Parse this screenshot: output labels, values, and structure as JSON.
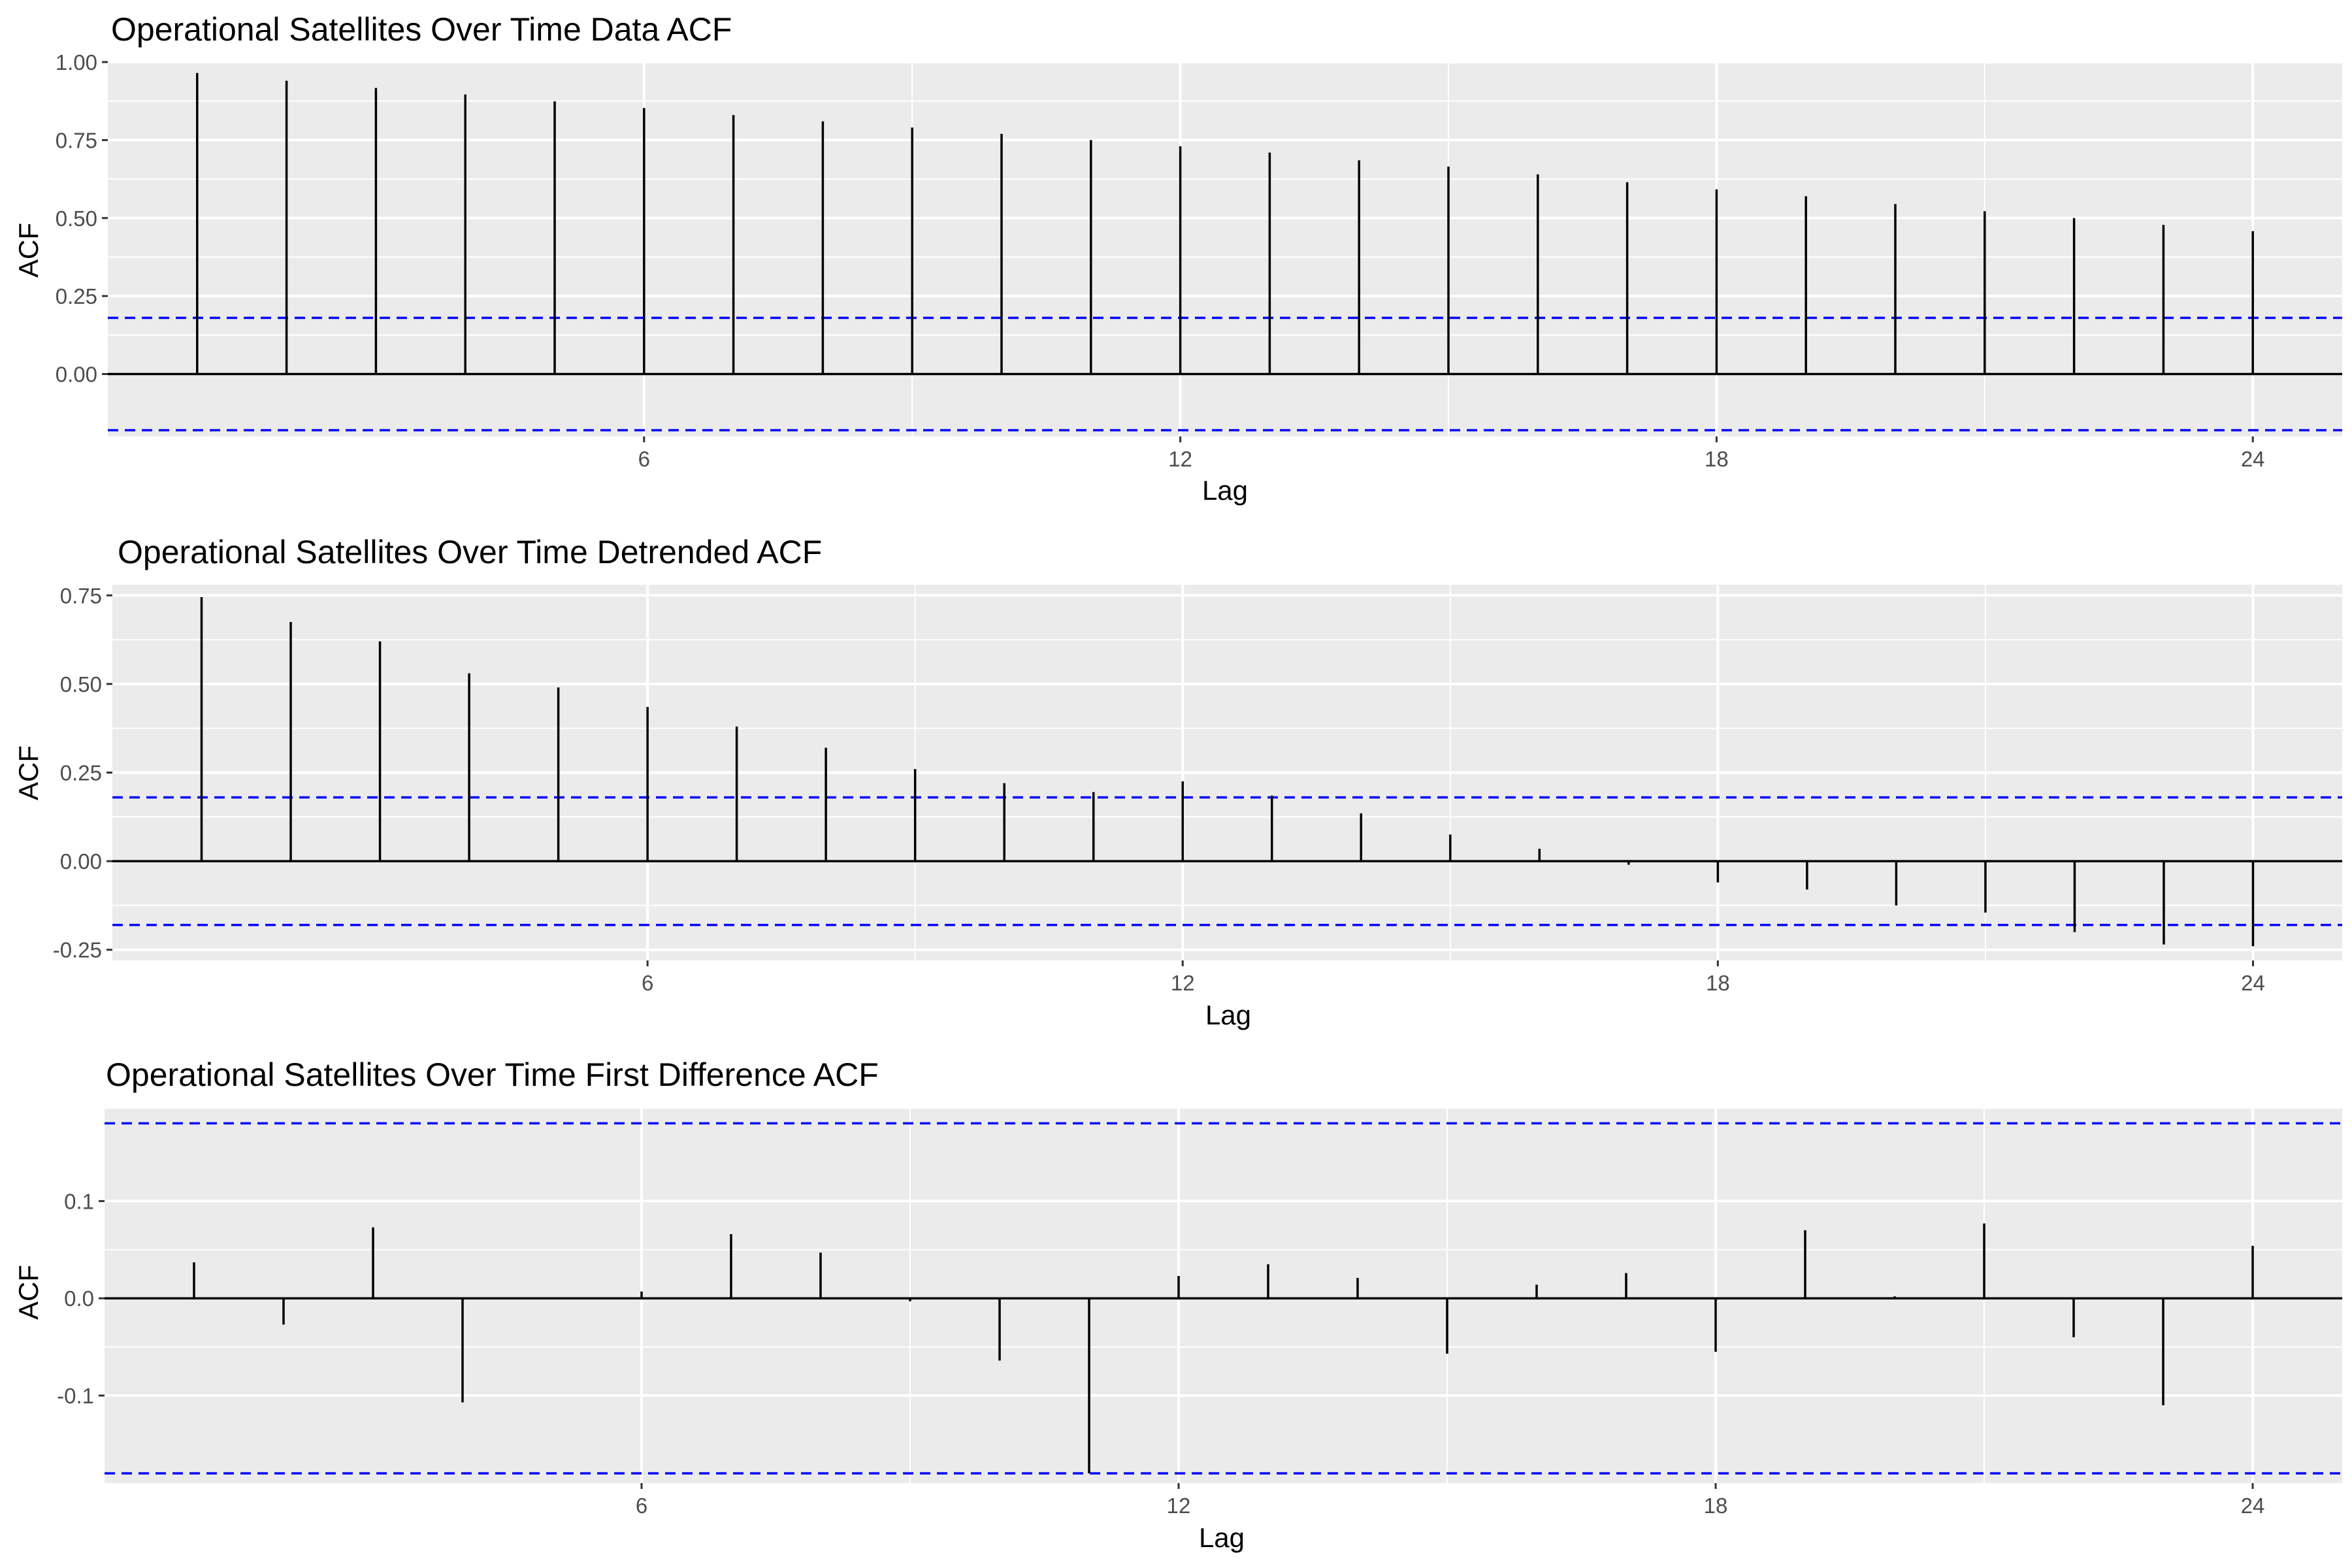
{
  "chart_data": [
    {
      "type": "bar",
      "title": "Operational Satellites Over Time Data ACF",
      "xlabel": "Lag",
      "ylabel": "ACF",
      "xlim": [
        0,
        25
      ],
      "ylim": [
        -0.2,
        1.0
      ],
      "x_ticks": [
        6,
        12,
        18,
        24
      ],
      "y_ticks": [
        0.0,
        0.25,
        0.5,
        0.75,
        1.0
      ],
      "y_tick_labels": [
        "0.00",
        "0.25",
        "0.50",
        "0.75",
        "1.00"
      ],
      "lags": [
        1,
        2,
        3,
        4,
        5,
        6,
        7,
        8,
        9,
        10,
        11,
        12,
        13,
        14,
        15,
        16,
        17,
        18,
        19,
        20,
        21,
        22,
        23,
        24
      ],
      "values": [
        0.965,
        0.94,
        0.917,
        0.896,
        0.874,
        0.853,
        0.83,
        0.81,
        0.79,
        0.77,
        0.75,
        0.73,
        0.71,
        0.685,
        0.665,
        0.64,
        0.615,
        0.592,
        0.57,
        0.545,
        0.522,
        0.5,
        0.478,
        0.458
      ],
      "confidence_bound": 0.18,
      "grid": true,
      "colors": {
        "bars": "#000000",
        "bounds": "#0000ff",
        "panel": "#ebebeb",
        "grid": "#ffffff"
      }
    },
    {
      "type": "bar",
      "title": "Operational Satellites Over Time Detrended ACF",
      "xlabel": "Lag",
      "ylabel": "ACF",
      "xlim": [
        0,
        25
      ],
      "ylim": [
        -0.28,
        0.78
      ],
      "x_ticks": [
        6,
        12,
        18,
        24
      ],
      "y_ticks": [
        -0.25,
        0.0,
        0.25,
        0.5,
        0.75
      ],
      "y_tick_labels": [
        "-0.25",
        "0.00",
        "0.25",
        "0.50",
        "0.75"
      ],
      "lags": [
        1,
        2,
        3,
        4,
        5,
        6,
        7,
        8,
        9,
        10,
        11,
        12,
        13,
        14,
        15,
        16,
        17,
        18,
        19,
        20,
        21,
        22,
        23,
        24
      ],
      "values": [
        0.745,
        0.675,
        0.62,
        0.53,
        0.49,
        0.435,
        0.38,
        0.32,
        0.26,
        0.22,
        0.195,
        0.225,
        0.185,
        0.135,
        0.075,
        0.035,
        -0.01,
        -0.06,
        -0.08,
        -0.125,
        -0.145,
        -0.2,
        -0.235,
        -0.24
      ],
      "confidence_bound": 0.18,
      "grid": true,
      "colors": {
        "bars": "#000000",
        "bounds": "#0000ff",
        "panel": "#ebebeb",
        "grid": "#ffffff"
      }
    },
    {
      "type": "bar",
      "title": "Operational Satellites Over Time First Difference ACF",
      "xlabel": "Lag",
      "ylabel": "ACF",
      "xlim": [
        0,
        25
      ],
      "ylim": [
        -0.19,
        0.195
      ],
      "x_ticks": [
        6,
        12,
        18,
        24
      ],
      "y_ticks": [
        -0.1,
        0.0,
        0.1
      ],
      "y_tick_labels": [
        "-0.1",
        "0.0",
        "0.1"
      ],
      "lags": [
        1,
        2,
        3,
        4,
        5,
        6,
        7,
        8,
        9,
        10,
        11,
        12,
        13,
        14,
        15,
        16,
        17,
        18,
        19,
        20,
        21,
        22,
        23,
        24
      ],
      "values": [
        0.037,
        -0.027,
        0.073,
        -0.107,
        0.0,
        0.007,
        0.066,
        0.047,
        -0.003,
        -0.064,
        -0.18,
        0.023,
        0.035,
        0.021,
        -0.057,
        0.014,
        0.026,
        -0.055,
        0.07,
        0.002,
        0.077,
        -0.04,
        -0.11,
        0.054
      ],
      "confidence_bound": 0.18,
      "grid": true,
      "colors": {
        "bars": "#000000",
        "bounds": "#0000ff",
        "panel": "#ebebeb",
        "grid": "#ffffff"
      }
    }
  ]
}
